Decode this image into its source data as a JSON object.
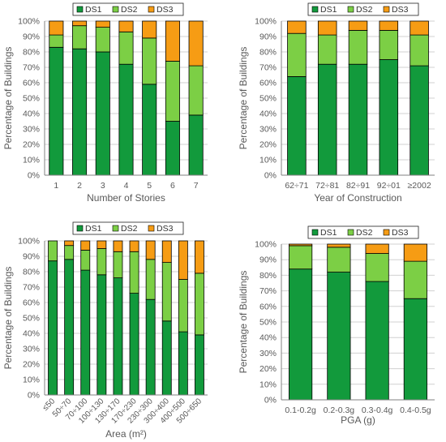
{
  "colors": {
    "DS1": "#129a3c",
    "DS2": "#7ccf45",
    "DS3": "#f69c14",
    "axis": "#808080",
    "grid": "#d0d0d0",
    "text": "#595959"
  },
  "chart_data": [
    {
      "type": "bar",
      "stacked": true,
      "title": "",
      "xlabel": "Number of Stories",
      "ylabel": "Percentage of Buildings",
      "ylim": [
        0,
        100
      ],
      "yticks": [
        "0%",
        "10%",
        "20%",
        "30%",
        "40%",
        "50%",
        "60%",
        "70%",
        "80%",
        "90%",
        "100%"
      ],
      "legend": [
        "DS1",
        "DS2",
        "DS3"
      ],
      "legend_position": "top",
      "categories": [
        "1",
        "2",
        "3",
        "4",
        "5",
        "6",
        "7"
      ],
      "series": [
        {
          "name": "DS1",
          "values": [
            83,
            82,
            80,
            72,
            59,
            35,
            39
          ]
        },
        {
          "name": "DS2",
          "values": [
            8,
            15,
            16,
            21,
            30,
            39,
            32
          ]
        },
        {
          "name": "DS3",
          "values": [
            9,
            3,
            4,
            7,
            11,
            26,
            29
          ]
        }
      ]
    },
    {
      "type": "bar",
      "stacked": true,
      "title": "",
      "xlabel": "Year of Construction",
      "ylabel": "Percentage of Buildings",
      "ylim": [
        0,
        100
      ],
      "yticks": [
        "0%",
        "10%",
        "20%",
        "30%",
        "40%",
        "50%",
        "60%",
        "70%",
        "80%",
        "90%",
        "100%"
      ],
      "legend": [
        "DS1",
        "DS2",
        "DS3"
      ],
      "legend_position": "top",
      "categories": [
        "62÷71",
        "72÷81",
        "82÷91",
        "92÷01",
        "≥2002"
      ],
      "series": [
        {
          "name": "DS1",
          "values": [
            64,
            72,
            72,
            75,
            71
          ]
        },
        {
          "name": "DS2",
          "values": [
            28,
            19,
            22,
            19,
            20
          ]
        },
        {
          "name": "DS3",
          "values": [
            8,
            9,
            6,
            6,
            9
          ]
        }
      ]
    },
    {
      "type": "bar",
      "stacked": true,
      "title": "",
      "xlabel": "Area (m²)",
      "ylabel": "Percentage of Buildings",
      "ylim": [
        0,
        100
      ],
      "yticks": [
        "0%",
        "10%",
        "20%",
        "30%",
        "40%",
        "50%",
        "60%",
        "70%",
        "80%",
        "90%",
        "100%"
      ],
      "legend": [
        "DS1",
        "DS2",
        "DS3"
      ],
      "legend_position": "top",
      "categories": [
        "≤50",
        "50÷70",
        "70÷100",
        "100÷130",
        "130÷170",
        "170÷230",
        "230÷300",
        "300÷400",
        "400÷500",
        "500÷650"
      ],
      "series": [
        {
          "name": "DS1",
          "values": [
            87,
            88,
            81,
            78,
            76,
            66,
            62,
            48,
            41,
            39
          ]
        },
        {
          "name": "DS2",
          "values": [
            13,
            9,
            13,
            17,
            17,
            27,
            26,
            38,
            34,
            40
          ]
        },
        {
          "name": "DS3",
          "values": [
            0,
            3,
            6,
            5,
            7,
            7,
            12,
            14,
            25,
            21
          ]
        }
      ]
    },
    {
      "type": "bar",
      "stacked": true,
      "title": "",
      "xlabel": "PGA (g)",
      "ylabel": "Percentage of Buildings",
      "ylim": [
        0,
        100
      ],
      "yticks": [
        "0%",
        "10%",
        "20%",
        "30%",
        "40%",
        "50%",
        "60%",
        "70%",
        "80%",
        "90%",
        "100%"
      ],
      "legend": [
        "DS1",
        "DS2",
        "DS3"
      ],
      "legend_position": "top",
      "categories": [
        "0.1-0.2g",
        "0.2-0.3g",
        "0.3-0.4g",
        "0.4-0.5g"
      ],
      "series": [
        {
          "name": "DS1",
          "values": [
            84,
            82,
            76,
            65
          ]
        },
        {
          "name": "DS2",
          "values": [
            15,
            16,
            18,
            24
          ]
        },
        {
          "name": "DS3",
          "values": [
            1,
            2,
            6,
            11
          ]
        }
      ]
    }
  ]
}
